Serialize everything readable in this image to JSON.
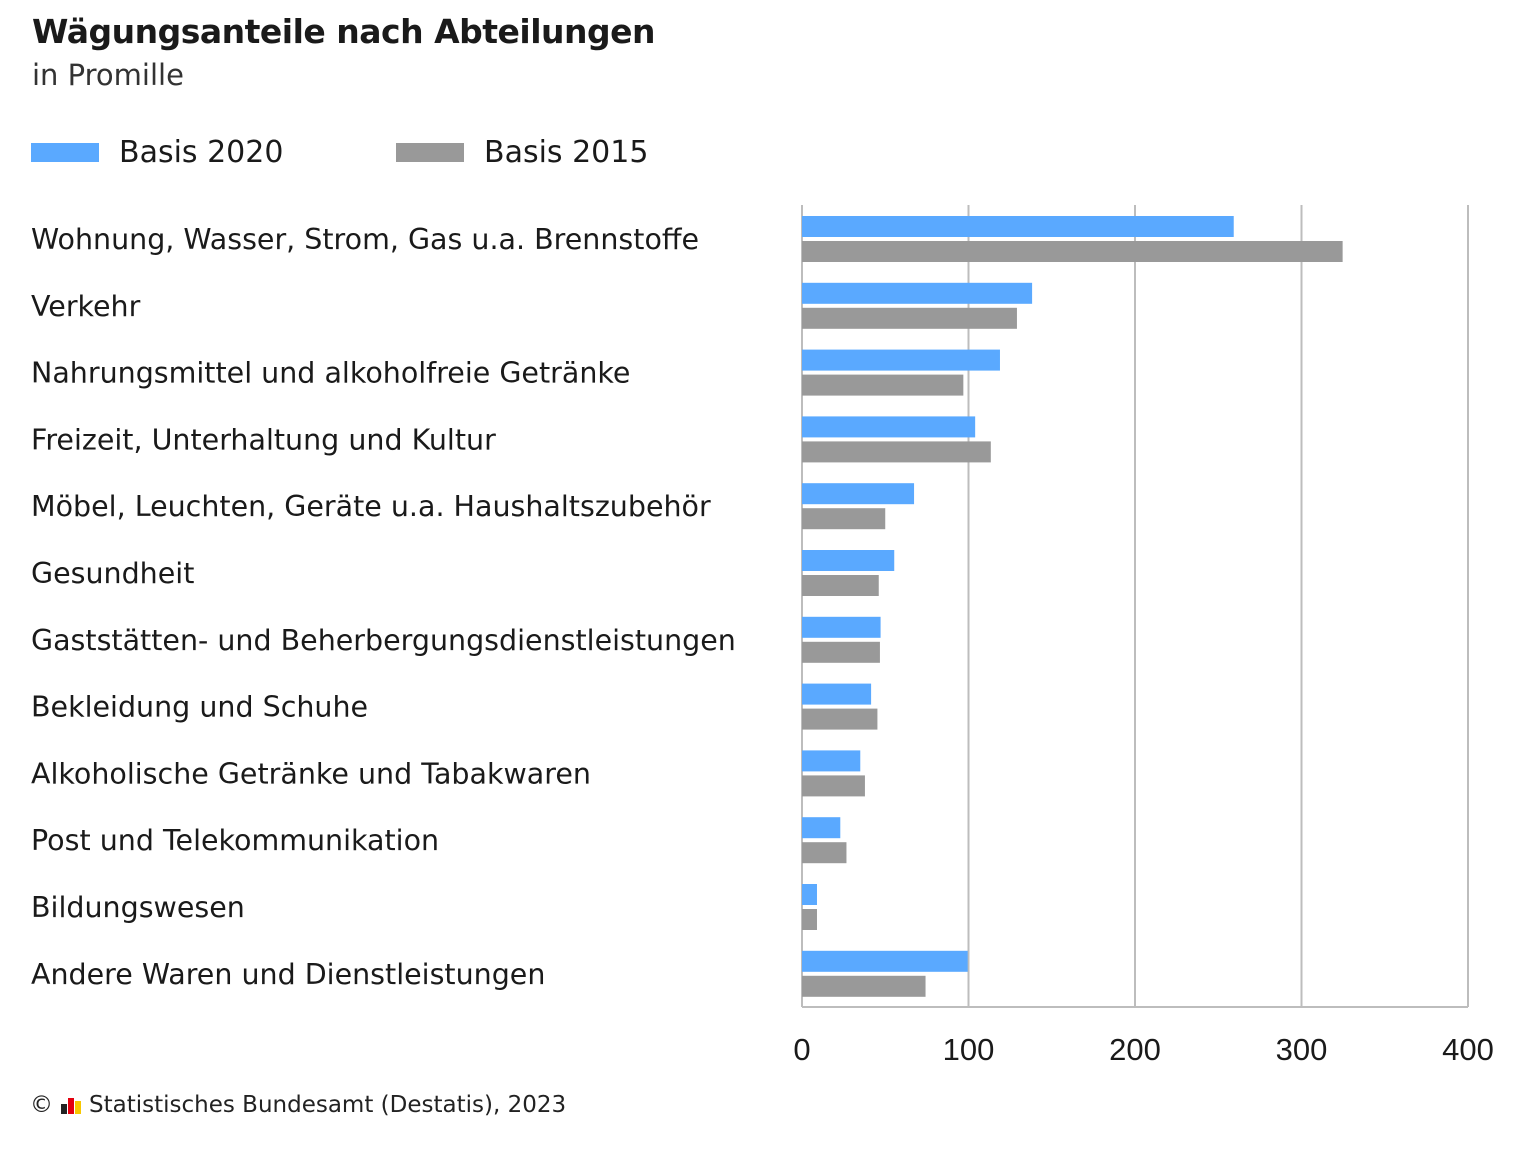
{
  "title": "Wägungsanteile nach Abteilungen",
  "subtitle": "in Promille",
  "source": {
    "copyright": "©",
    "text": "Statistisches Bundesamt (Destatis), 2023",
    "logo_colors": [
      "#222222",
      "#e3000f",
      "#f7c800"
    ]
  },
  "colors": {
    "basis2020": "#5aa9ff",
    "basis2015": "#999999",
    "grid": "#bdbdbd"
  },
  "chart_data": {
    "type": "bar",
    "orientation": "horizontal",
    "title": "Wägungsanteile nach Abteilungen",
    "subtitle": "in Promille",
    "legend_position": "top-left",
    "grid": true,
    "xlim": [
      0,
      400
    ],
    "ticks": [
      0,
      100,
      200,
      300,
      400
    ],
    "tick_labels": [
      "0",
      "100",
      "200",
      "300",
      "400"
    ],
    "categories": [
      "Wohnung, Wasser, Strom, Gas u.a. Brennstoffe",
      "Verkehr",
      "Nahrungsmittel und alkoholfreie Getränke",
      "Freizeit, Unterhaltung und Kultur",
      "Möbel, Leuchten, Geräte u.a. Haushaltszubehör",
      "Gesundheit",
      "Gaststätten- und Beherbergungsdienstleistungen",
      "Bekleidung und Schuhe",
      "Alkoholische Getränke und Tabakwaren",
      "Post und Telekommunikation",
      "Bildungswesen",
      "Andere Waren und Dienstleistungen"
    ],
    "series": [
      {
        "name": "Basis 2020",
        "color": "#5aa9ff",
        "values": [
          259.3,
          138.2,
          118.9,
          104.0,
          67.3,
          55.4,
          47.2,
          41.5,
          35.0,
          23.0,
          9.0,
          99.5
        ]
      },
      {
        "name": "Basis 2015",
        "color": "#999999",
        "values": [
          324.7,
          129.1,
          96.9,
          113.4,
          50.0,
          46.1,
          46.8,
          45.3,
          37.8,
          26.7,
          9.0,
          74.2
        ]
      }
    ]
  }
}
